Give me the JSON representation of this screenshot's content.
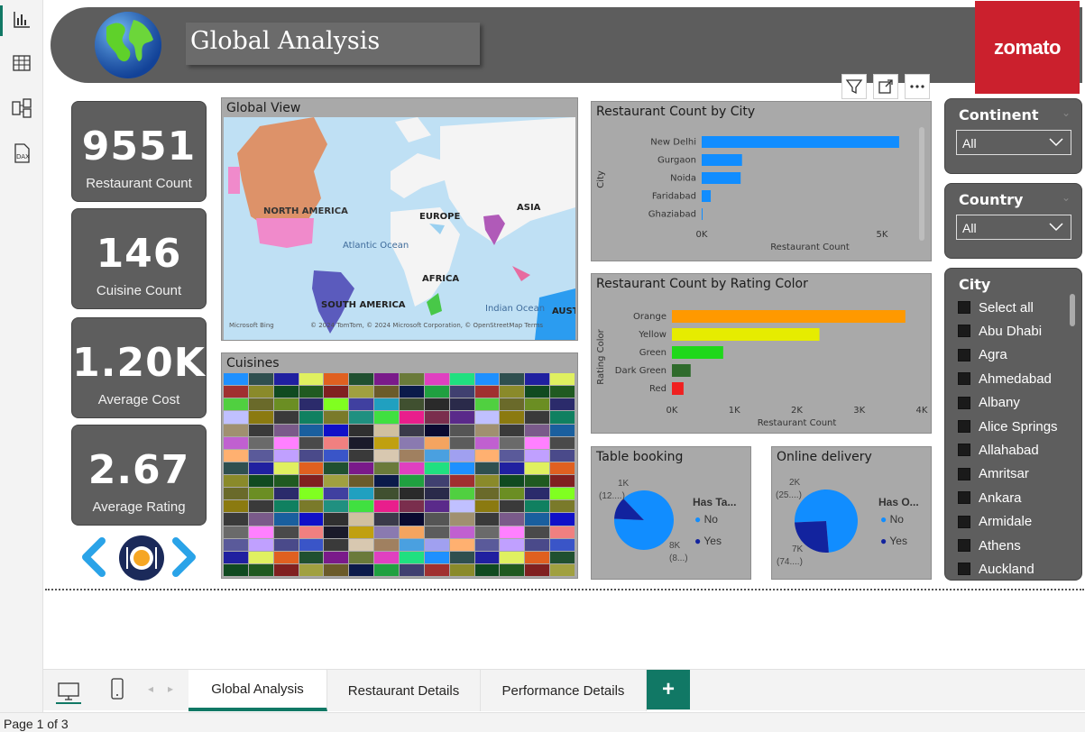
{
  "header": {
    "title": "Global Analysis",
    "logo_text": "zomato"
  },
  "colors": {
    "accent": "#117865",
    "brand": "#cb202d",
    "card_bg": "#5e5e5e",
    "panel_bg": "#a9a9a9"
  },
  "kpis": [
    {
      "value": "9551",
      "label": "Restaurant Count"
    },
    {
      "value": "146",
      "label": "Cuisine Count"
    },
    {
      "value": "1.20K",
      "label": "Average Cost"
    },
    {
      "value": "2.67",
      "label": "Average Rating"
    }
  ],
  "map": {
    "title": "Global View",
    "labels": {
      "na": "NORTH AMERICA",
      "eu": "EUROPE",
      "asia": "ASIA",
      "africa": "AFRICA",
      "sa": "SOUTH AMERICA",
      "atlantic": "Atlantic Ocean",
      "indian": "Indian Ocean",
      "aus": "AUST"
    },
    "attribution": "© 2024 TomTom, © 2024 Microsoft Corporation, © OpenStreetMap  Terms",
    "bing": "Microsoft Bing"
  },
  "cuisines": {
    "title": "Cuisines"
  },
  "city_chart_title": "Restaurant Count by City",
  "rating_chart_title": "Restaurant Count by Rating Color",
  "table_booking": {
    "title": "Table booking",
    "legend_title": "Has Ta...",
    "legend": [
      "No",
      "Yes"
    ],
    "label_yes": "1K",
    "label_yes_pct": "(12....)",
    "label_no": "8K",
    "label_no_pct": "(8...)"
  },
  "online_delivery": {
    "title": "Online delivery",
    "legend_title": "Has O...",
    "legend": [
      "No",
      "Yes"
    ],
    "label_yes": "2K",
    "label_yes_pct": "(25....)",
    "label_no": "7K",
    "label_no_pct": "(74....)"
  },
  "chart_data": [
    {
      "type": "bar",
      "title": "Restaurant Count by City",
      "categories": [
        "New Delhi",
        "Gurgaon",
        "Noida",
        "Faridabad",
        "Ghaziabad"
      ],
      "values": [
        5473,
        1118,
        1080,
        251,
        25
      ],
      "xlabel": "Restaurant Count",
      "ylabel": "City",
      "xlim": [
        0,
        6000
      ],
      "ticks": [
        "0K",
        "5K"
      ],
      "colors": [
        "#118dff"
      ]
    },
    {
      "type": "bar",
      "title": "Restaurant Count by Rating Color",
      "categories": [
        "Orange",
        "Yellow",
        "Green",
        "Dark Green",
        "Red"
      ],
      "values": [
        3737,
        2362,
        821,
        300,
        186
      ],
      "xlabel": "Restaurant Count",
      "ylabel": "Rating Color",
      "xlim": [
        0,
        4000
      ],
      "ticks": [
        "0K",
        "1K",
        "2K",
        "3K",
        "4K"
      ],
      "colors": [
        "#ff9900",
        "#e6ec00",
        "#1fd81a",
        "#2f6b2c",
        "#f02020"
      ]
    },
    {
      "type": "pie",
      "title": "Table booking",
      "categories": [
        "No",
        "Yes"
      ],
      "values": [
        8393,
        1158
      ],
      "colors": [
        "#118dff",
        "#12239e"
      ]
    },
    {
      "type": "pie",
      "title": "Online delivery",
      "categories": [
        "No",
        "Yes"
      ],
      "values": [
        7100,
        2451
      ],
      "colors": [
        "#118dff",
        "#12239e"
      ]
    }
  ],
  "slicers": {
    "continent": {
      "title": "Continent",
      "value": "All"
    },
    "country": {
      "title": "Country",
      "value": "All"
    },
    "city": {
      "title": "City",
      "items": [
        "Select all",
        "Abu Dhabi",
        "Agra",
        "Ahmedabad",
        "Albany",
        "Alice Springs",
        "Allahabad",
        "Amritsar",
        "Ankara",
        "Armidale",
        "Athens",
        "Auckland"
      ]
    }
  },
  "tabs": {
    "items": [
      "Global Analysis",
      "Restaurant Details",
      "Performance Details"
    ],
    "add": "+"
  },
  "status": {
    "page": "Page 1 of 3"
  }
}
